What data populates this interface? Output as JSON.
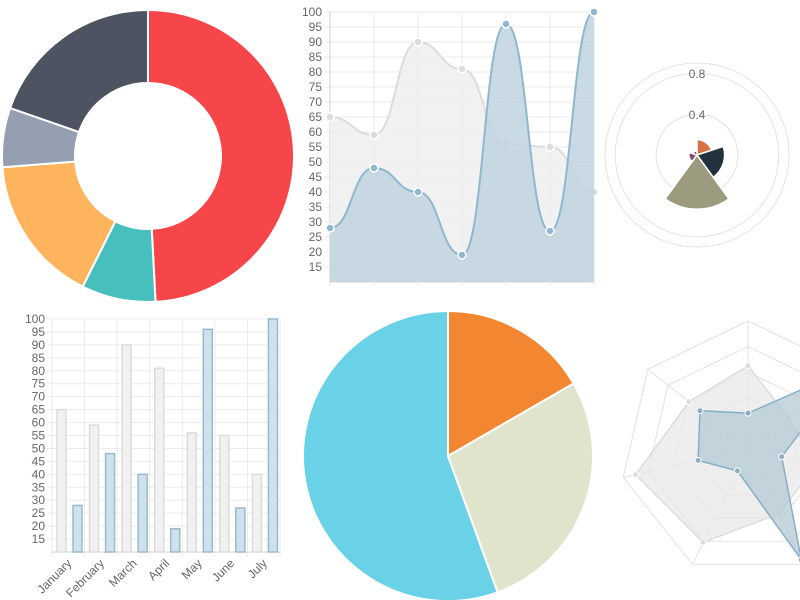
{
  "chart_data": [
    {
      "type": "doughnut",
      "values": [
        300,
        50,
        100,
        40,
        120
      ],
      "colors": [
        "#F7464A",
        "#46BFBD",
        "#FDB45C",
        "#949FB1",
        "#4D5360"
      ]
    },
    {
      "type": "area",
      "smooth": true,
      "y_ticks": [
        "15",
        "20",
        "25",
        "30",
        "35",
        "40",
        "45",
        "50",
        "55",
        "60",
        "65",
        "70",
        "75",
        "80",
        "85",
        "90",
        "95",
        "100"
      ],
      "ylim": [
        10,
        100
      ],
      "series": [
        {
          "values": [
            65,
            59,
            90,
            81,
            56,
            55,
            40
          ],
          "fill": "#EEEEEE",
          "stroke": "#DCDCDC"
        },
        {
          "values": [
            28,
            48,
            40,
            19,
            96,
            27,
            100
          ],
          "fill": "#BFD3DF",
          "stroke": "#8FB8CE"
        }
      ],
      "grid": true
    },
    {
      "type": "polar-area",
      "r_ticks": [
        "0.4",
        "0.8"
      ],
      "segments": [
        {
          "value": 0.15,
          "color": "#D97041"
        },
        {
          "value": 0.27,
          "color": "#21323D"
        },
        {
          "value": 0.53,
          "color": "#9D9B7F"
        },
        {
          "value": 0.08,
          "color": "#7D4F6D"
        },
        {
          "value": 0.04,
          "color": "#584A5E"
        }
      ]
    },
    {
      "type": "bar",
      "categories": [
        "January",
        "February",
        "March",
        "April",
        "May",
        "June",
        "July"
      ],
      "y_ticks": [
        "15",
        "20",
        "25",
        "30",
        "35",
        "40",
        "45",
        "50",
        "55",
        "60",
        "65",
        "70",
        "75",
        "80",
        "85",
        "90",
        "95",
        "100"
      ],
      "ylim": [
        10,
        100
      ],
      "series": [
        {
          "values": [
            65,
            59,
            90,
            81,
            56,
            55,
            40
          ],
          "fill": "#F1F1F1",
          "stroke": "#DCDCDC"
        },
        {
          "values": [
            28,
            48,
            40,
            19,
            96,
            27,
            100
          ],
          "fill": "#CFE1EA",
          "stroke": "#97BBCD"
        }
      ],
      "grid": true
    },
    {
      "type": "pie",
      "values": [
        30,
        50,
        100
      ],
      "colors": [
        "#F38630",
        "#E0E4CC",
        "#69D2E7"
      ]
    },
    {
      "type": "radar",
      "axes_count": 7,
      "rmax": 100,
      "series": [
        {
          "values": [
            65,
            59,
            90,
            81,
            56,
            55,
            40
          ],
          "fill": "#E8E8E8",
          "stroke": "#DCDCDC",
          "point": "#DCDCDC"
        },
        {
          "values": [
            28,
            48,
            40,
            19,
            96,
            27,
            100
          ],
          "fill": "#B3C9D6",
          "stroke": "#88AFC5",
          "point": "#88AFC5"
        }
      ]
    }
  ]
}
